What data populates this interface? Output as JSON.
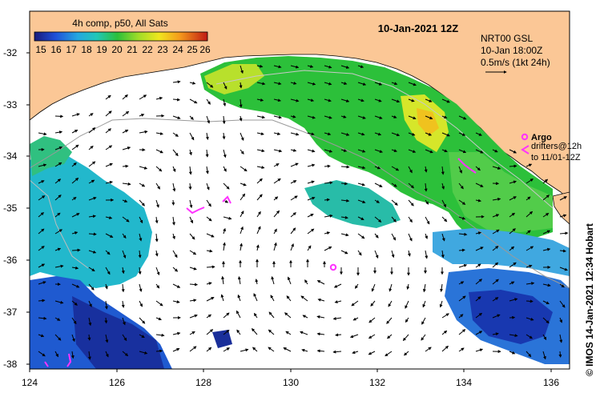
{
  "map": {
    "title": "10-Jan-2021 12Z",
    "colorbar": {
      "label": "4h comp, p50, All Sats",
      "ticks": [
        "15",
        "16",
        "17",
        "18",
        "19",
        "20",
        "21",
        "22",
        "23",
        "24",
        "25",
        "26"
      ]
    },
    "velocity_info": {
      "line1": "NRT00 GSL",
      "line2": "10-Jan 18:00Z",
      "line3": "0.5m/s (1kt 24h)"
    },
    "legend": {
      "argo_label": "Argo",
      "drifters_line1": "drifters@12h",
      "drifters_line2": "to 11/01-12Z"
    },
    "credit": "© IMOS 14-Jan-2021 12:34 Hobart",
    "x_ticks": [
      "124",
      "126",
      "128",
      "130",
      "132",
      "134",
      "136"
    ],
    "y_ticks": [
      "-32",
      "-33",
      "-34",
      "-35",
      "-36",
      "-37",
      "-38"
    ],
    "colors": {
      "land": "#fbc796",
      "argo": "#ff33ff",
      "warm": "#f5e21a",
      "green": "#22c02c",
      "cyan": "#20b8cc",
      "blue": "#1030a8"
    }
  }
}
